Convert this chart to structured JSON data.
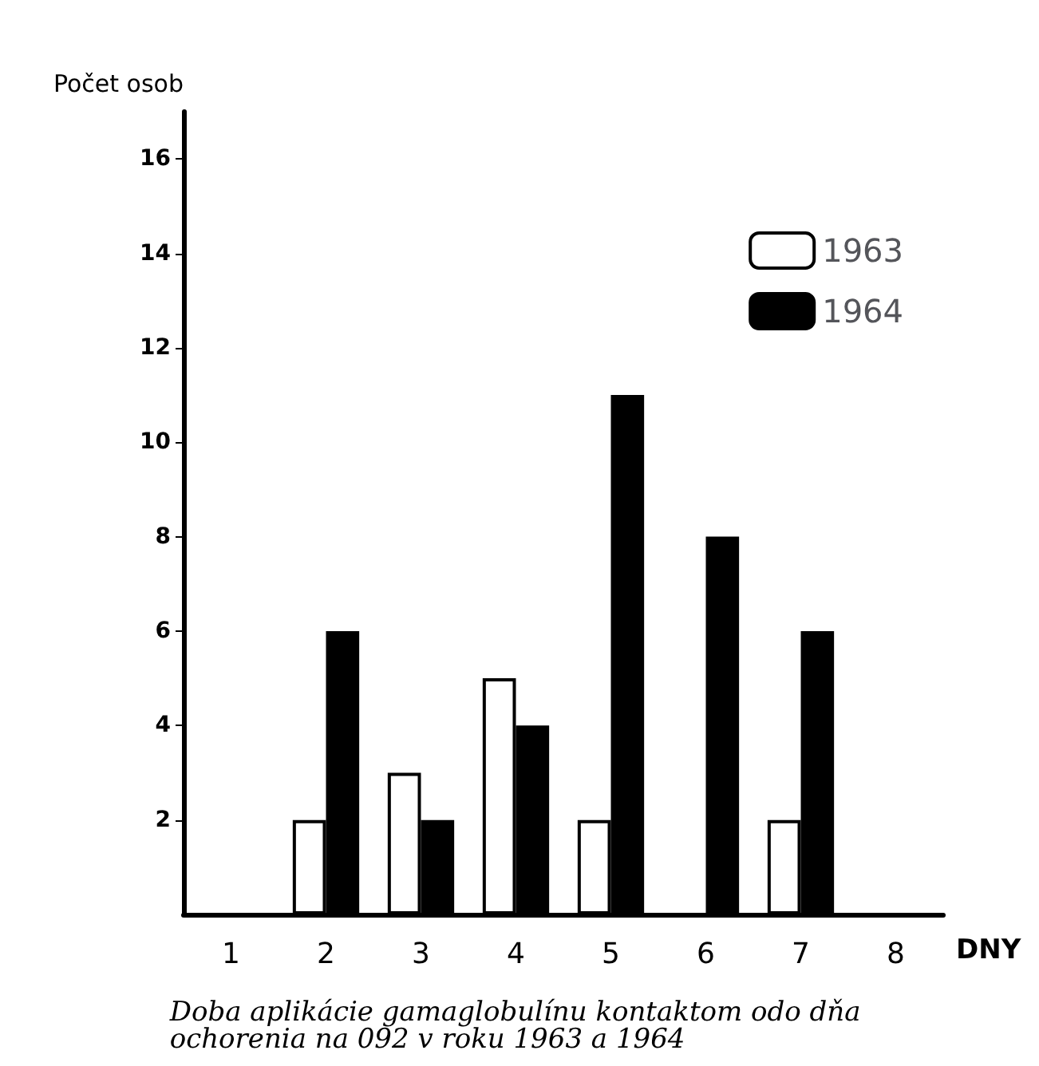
{
  "chart_data": {
    "type": "bar",
    "categories": [
      "1",
      "2",
      "3",
      "4",
      "5",
      "6",
      "7",
      "8"
    ],
    "series": [
      {
        "name": "1963",
        "color": "#ffffff",
        "values": [
          null,
          2,
          3,
          5,
          2,
          null,
          2,
          null
        ]
      },
      {
        "name": "1964",
        "color": "#000000",
        "values": [
          null,
          6,
          2,
          4,
          11,
          8,
          6,
          null
        ]
      }
    ],
    "xlabel": "DNY",
    "ylabel": "Počet osob",
    "ylim": [
      0,
      17
    ],
    "yticks": [
      2,
      4,
      6,
      8,
      10,
      12,
      14,
      16
    ],
    "grid": false,
    "legend": "top right",
    "annotations": [
      "Doba aplikácie gamaglobulínu kontaktom odo dňa ochorenia na 092 v roku 1963 a 1964"
    ]
  }
}
